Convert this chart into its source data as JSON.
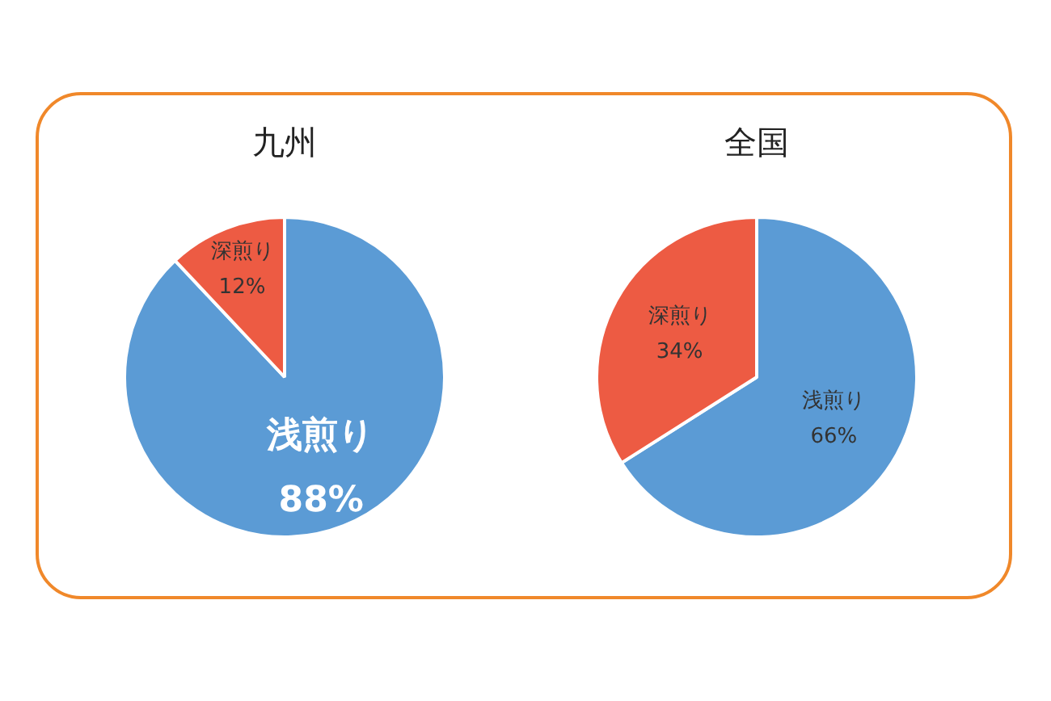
{
  "chart_data": [
    {
      "type": "pie",
      "title": "九州",
      "categories": [
        "浅煎り",
        "深煎り"
      ],
      "values": [
        88,
        12
      ],
      "colors": [
        "#5b9bd5",
        "#ed5b43"
      ],
      "value_labels": [
        "88%",
        "12%"
      ]
    },
    {
      "type": "pie",
      "title": "全国",
      "categories": [
        "浅煎り",
        "深煎り"
      ],
      "values": [
        66,
        34
      ],
      "colors": [
        "#5b9bd5",
        "#ed5b43"
      ],
      "value_labels": [
        "66%",
        "34%"
      ]
    }
  ]
}
